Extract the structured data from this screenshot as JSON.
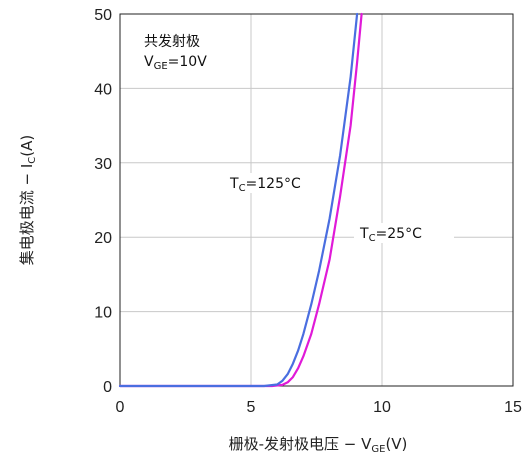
{
  "chart_data": {
    "type": "line",
    "xlabel_main": "栅极-发射极电压 − V",
    "xlabel_sub": "GE",
    "xlabel_unit": "(V)",
    "ylabel_main": "集电极电流  − I",
    "ylabel_sub": "C",
    "ylabel_unit": "(A)",
    "xlim": [
      0,
      15
    ],
    "ylim": [
      0,
      50
    ],
    "x_ticks": [
      0,
      5,
      10,
      15
    ],
    "y_ticks": [
      0,
      10,
      20,
      30,
      40,
      50
    ],
    "grid": true,
    "condition_line1": "共发射极",
    "condition_v": "V",
    "condition_sub": "GE",
    "condition_val": "=10V",
    "series": [
      {
        "name_pre": "T",
        "name_sub": "C",
        "name_post": "=125°C",
        "color": "#4a6ee0",
        "x": [
          0,
          5.5,
          6.0,
          6.2,
          6.4,
          6.6,
          6.8,
          7.0,
          7.3,
          7.6,
          8.0,
          8.4,
          8.8,
          9.05
        ],
        "y": [
          0,
          0,
          0.2,
          0.7,
          1.6,
          3.0,
          4.8,
          7.0,
          11.0,
          15.5,
          22.5,
          31.0,
          41.5,
          50
        ]
      },
      {
        "name_pre": "T",
        "name_sub": "C",
        "name_post": "=25°C",
        "color": "#e01ad8",
        "x": [
          0,
          5.8,
          6.2,
          6.4,
          6.6,
          6.8,
          7.0,
          7.3,
          7.6,
          8.0,
          8.4,
          8.8,
          9.05,
          9.22
        ],
        "y": [
          0,
          0,
          0.15,
          0.5,
          1.2,
          2.4,
          4.0,
          7.0,
          11.0,
          17.0,
          25.5,
          35.0,
          43.5,
          50
        ]
      }
    ]
  }
}
